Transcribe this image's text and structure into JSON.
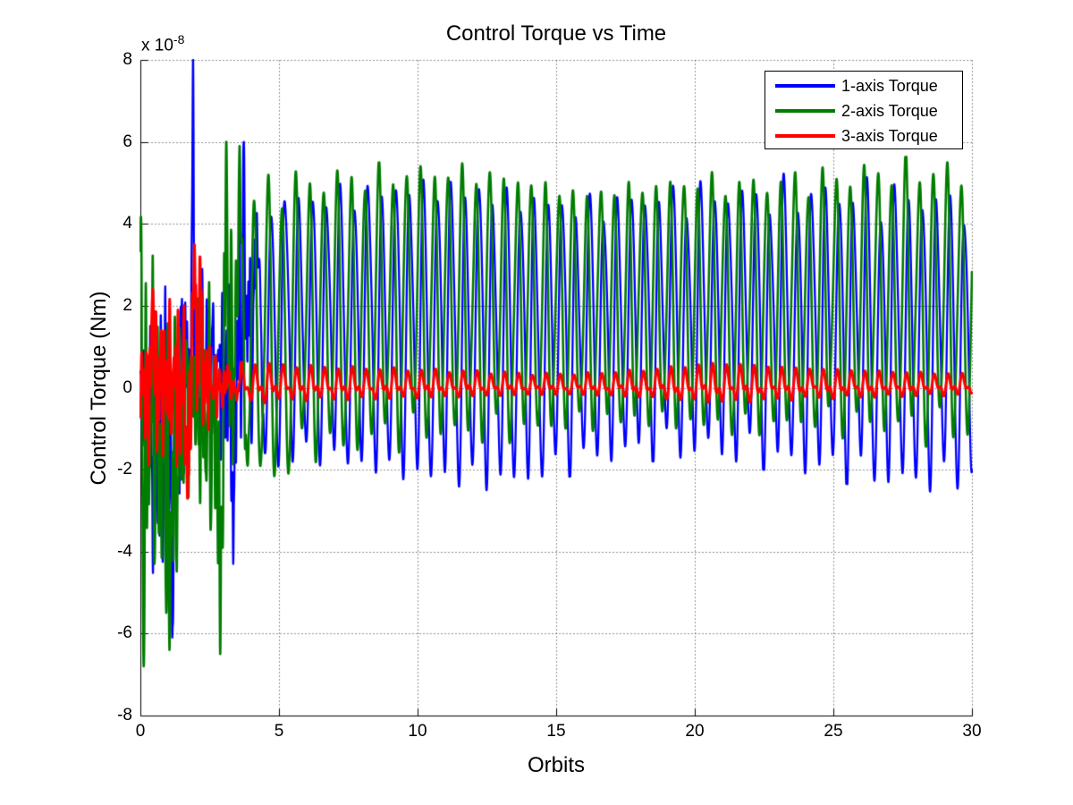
{
  "figure": {
    "title": "Control Torque vs Time",
    "xlabel": "Orbits",
    "ylabel": "Control Torque (Nm)",
    "y_exponent_label": "x 10",
    "y_exponent_power": "-8",
    "background_color": "#FFFFFF",
    "axis_color": "#000000",
    "grid_dot_color": "#262626"
  },
  "legend": {
    "position": "upper-right",
    "items": [
      {
        "label": "1-axis Torque",
        "color": "#0000FF"
      },
      {
        "label": "2-axis Torque",
        "color": "#007D00"
      },
      {
        "label": "3-axis Torque",
        "color": "#FF0000"
      }
    ]
  },
  "seed": 20140613,
  "chart_data": {
    "type": "line",
    "title": "Control Torque vs Time",
    "xlabel": "Orbits",
    "ylabel": "Control Torque (Nm)",
    "xlim": [
      0,
      30
    ],
    "ylim": [
      -8e-08,
      8e-08
    ],
    "y_scale_factor": 1e-08,
    "x_ticks": [
      0,
      5,
      10,
      15,
      20,
      25,
      30
    ],
    "y_ticks_1e8": [
      8,
      6,
      4,
      2,
      0,
      -2,
      -4,
      -6,
      -8
    ],
    "grid": true,
    "legend_position": "upper right",
    "oscillation_cycles_per_orbit": 2,
    "transient_end_orbits": 4.5,
    "series": [
      {
        "name": "1-axis Torque",
        "color": "#0000FF",
        "linewidth": 2.3,
        "peak_time_offset": 0.225,
        "steady_onset": [
          3.6,
          4.7
        ],
        "chaos_freqs": [
          5.3,
          8.1,
          12.7
        ],
        "waveform_harmonics": [
          [
            1,
            0.92,
            0.0
          ],
          [
            2,
            0.1,
            2.1
          ],
          [
            0.5,
            0.06,
            0.7
          ]
        ],
        "envelope_top_1e8": [
          [
            0,
            0.8
          ],
          [
            0.4,
            3.0
          ],
          [
            0.9,
            3.3
          ],
          [
            1.4,
            3.4
          ],
          [
            1.8,
            3.5
          ],
          [
            2.1,
            3.6
          ],
          [
            2.4,
            3.3
          ],
          [
            2.7,
            2.3
          ],
          [
            3.0,
            3.4
          ],
          [
            3.3,
            4.6
          ],
          [
            3.8,
            5.8
          ],
          [
            4.1,
            5.2
          ],
          [
            4.6,
            4.85
          ],
          [
            6,
            4.9
          ],
          [
            8,
            5.05
          ],
          [
            10,
            5.25
          ],
          [
            12,
            5.15
          ],
          [
            14,
            4.9
          ],
          [
            16,
            4.7
          ],
          [
            18,
            4.9
          ],
          [
            20,
            5.0
          ],
          [
            22,
            5.0
          ],
          [
            24,
            5.05
          ],
          [
            26,
            5.05
          ],
          [
            28,
            4.95
          ],
          [
            30,
            4.8
          ]
        ],
        "envelope_bottom_1e8": [
          [
            0,
            -0.8
          ],
          [
            0.3,
            -4.3
          ],
          [
            0.6,
            -5.6
          ],
          [
            0.9,
            -6.0
          ],
          [
            1.2,
            -5.9
          ],
          [
            1.5,
            -3.0
          ],
          [
            1.9,
            -2.0
          ],
          [
            2.2,
            -2.7
          ],
          [
            2.6,
            -1.6
          ],
          [
            3.0,
            -2.2
          ],
          [
            3.3,
            -4.2
          ],
          [
            3.6,
            -2.6
          ],
          [
            4.0,
            -2.1
          ],
          [
            4.3,
            -2.2
          ],
          [
            5,
            -1.9
          ],
          [
            6,
            -1.6
          ],
          [
            7,
            -1.75
          ],
          [
            8,
            -1.9
          ],
          [
            10,
            -2.15
          ],
          [
            12,
            -2.25
          ],
          [
            13.5,
            -2.3
          ],
          [
            15,
            -2.0
          ],
          [
            16.5,
            -1.7
          ],
          [
            18,
            -1.55
          ],
          [
            20,
            -1.5
          ],
          [
            21.5,
            -1.6
          ],
          [
            23,
            -1.8
          ],
          [
            25,
            -2.0
          ],
          [
            26.5,
            -2.2
          ],
          [
            28,
            -2.3
          ],
          [
            30,
            -2.2
          ]
        ],
        "notable_extrema_1e8": [
          {
            "t": 1.9,
            "v": 8.0,
            "w": 0.035
          },
          {
            "t": 1.15,
            "v": -6.1,
            "w": 0.04
          },
          {
            "t": 3.35,
            "v": -4.3,
            "w": 0.04
          },
          {
            "t": 3.73,
            "v": 6.0,
            "w": 0.04
          }
        ]
      },
      {
        "name": "2-axis Torque",
        "color": "#007D00",
        "linewidth": 2.6,
        "peak_time_offset": 0.1,
        "steady_onset": [
          3.0,
          4.2
        ],
        "chaos_freqs": [
          4.9,
          7.4,
          11.3
        ],
        "waveform_harmonics": [
          [
            1,
            0.93,
            0.0
          ],
          [
            2,
            0.09,
            -1.2
          ],
          [
            0.5,
            0.05,
            2.0
          ]
        ],
        "envelope_top_1e8": [
          [
            0,
            4.2
          ],
          [
            0.3,
            3.6
          ],
          [
            0.7,
            3.4
          ],
          [
            1.1,
            3.3
          ],
          [
            1.4,
            2.5
          ],
          [
            1.7,
            2.1
          ],
          [
            2.0,
            2.7
          ],
          [
            2.3,
            3.7
          ],
          [
            2.6,
            2.7
          ],
          [
            2.9,
            3.9
          ],
          [
            3.2,
            5.7
          ],
          [
            3.5,
            5.8
          ],
          [
            3.8,
            5.1
          ],
          [
            4.1,
            4.6
          ],
          [
            4.6,
            4.95
          ],
          [
            6,
            5.05
          ],
          [
            8,
            5.2
          ],
          [
            10,
            5.3
          ],
          [
            12,
            5.3
          ],
          [
            14,
            5.05
          ],
          [
            16,
            4.75
          ],
          [
            18,
            4.95
          ],
          [
            20,
            5.05
          ],
          [
            22,
            5.0
          ],
          [
            24,
            5.1
          ],
          [
            26,
            5.25
          ],
          [
            28,
            5.4
          ],
          [
            30,
            5.2
          ]
        ],
        "envelope_bottom_1e8": [
          [
            0,
            -3.0
          ],
          [
            0.15,
            -6.8
          ],
          [
            0.45,
            -5.6
          ],
          [
            0.75,
            -6.2
          ],
          [
            1.05,
            -6.4
          ],
          [
            1.3,
            -6.2
          ],
          [
            1.6,
            -3.2
          ],
          [
            1.9,
            -2.2
          ],
          [
            2.2,
            -4.0
          ],
          [
            2.5,
            -4.5
          ],
          [
            2.85,
            -6.4
          ],
          [
            3.1,
            -4.2
          ],
          [
            3.4,
            -2.4
          ],
          [
            3.7,
            -2.7
          ],
          [
            4.0,
            -3.3
          ],
          [
            4.3,
            -2.5
          ],
          [
            4.6,
            -2.1
          ],
          [
            5.0,
            -2.5
          ],
          [
            5.6,
            -1.9
          ],
          [
            6.5,
            -1.5
          ],
          [
            7.3,
            -1.8
          ],
          [
            8,
            -1.5
          ],
          [
            10,
            -1.3
          ],
          [
            12,
            -1.35
          ],
          [
            14,
            -1.25
          ],
          [
            16,
            -1.05
          ],
          [
            18,
            -1.0
          ],
          [
            20,
            -1.1
          ],
          [
            22,
            -1.2
          ],
          [
            24,
            -1.05
          ],
          [
            26,
            -1.1
          ],
          [
            28,
            -1.2
          ],
          [
            30,
            -1.3
          ]
        ],
        "notable_extrema_1e8": [
          {
            "t": 0.02,
            "v": 4.2,
            "w": 0.03
          },
          {
            "t": 0.12,
            "v": -6.8,
            "w": 0.04
          },
          {
            "t": 1.05,
            "v": -6.4,
            "w": 0.04
          },
          {
            "t": 2.88,
            "v": -6.5,
            "w": 0.04
          },
          {
            "t": 3.1,
            "v": 6.0,
            "w": 0.04
          },
          {
            "t": 3.58,
            "v": 5.9,
            "w": 0.04
          }
        ]
      },
      {
        "name": "3-axis Torque",
        "color": "#FF0000",
        "linewidth": 3.0,
        "peak_time_offset": 0.17,
        "steady_onset": [
          2.6,
          4.0
        ],
        "chaos_freqs": [
          6.1,
          9.7,
          13.9
        ],
        "waveform_harmonics": [
          [
            1,
            0.62,
            0.0
          ],
          [
            2,
            0.42,
            0.9
          ]
        ],
        "envelope_top_1e8": [
          [
            0,
            1.2
          ],
          [
            0.3,
            2.2
          ],
          [
            0.6,
            2.4
          ],
          [
            1.0,
            2.1
          ],
          [
            1.4,
            2.6
          ],
          [
            1.9,
            3.4
          ],
          [
            2.2,
            2.4
          ],
          [
            2.5,
            1.2
          ],
          [
            2.9,
            0.85
          ],
          [
            3.3,
            0.7
          ],
          [
            3.8,
            0.62
          ],
          [
            4.6,
            0.58
          ],
          [
            6,
            0.52
          ],
          [
            8,
            0.48
          ],
          [
            10,
            0.44
          ],
          [
            12,
            0.4
          ],
          [
            14,
            0.34
          ],
          [
            16,
            0.34
          ],
          [
            18,
            0.42
          ],
          [
            20,
            0.55
          ],
          [
            21,
            0.6
          ],
          [
            22,
            0.55
          ],
          [
            24,
            0.47
          ],
          [
            26,
            0.42
          ],
          [
            28,
            0.37
          ],
          [
            30,
            0.33
          ]
        ],
        "envelope_bottom_1e8": [
          [
            0,
            -1.2
          ],
          [
            0.3,
            -2.0
          ],
          [
            0.6,
            -2.3
          ],
          [
            1.0,
            -2.0
          ],
          [
            1.4,
            -2.4
          ],
          [
            1.9,
            -2.7
          ],
          [
            2.2,
            -2.0
          ],
          [
            2.5,
            -1.1
          ],
          [
            2.9,
            -0.7
          ],
          [
            3.3,
            -0.55
          ],
          [
            3.8,
            -0.48
          ],
          [
            4.6,
            -0.42
          ],
          [
            6,
            -0.38
          ],
          [
            8,
            -0.36
          ],
          [
            10,
            -0.32
          ],
          [
            12,
            -0.28
          ],
          [
            14,
            -0.23
          ],
          [
            16,
            -0.23
          ],
          [
            18,
            -0.3
          ],
          [
            20,
            -0.42
          ],
          [
            21,
            -0.46
          ],
          [
            22,
            -0.42
          ],
          [
            24,
            -0.34
          ],
          [
            26,
            -0.3
          ],
          [
            28,
            -0.26
          ],
          [
            30,
            -0.22
          ]
        ],
        "notable_extrema_1e8": [
          {
            "t": 0.45,
            "v": 2.4,
            "w": 0.05
          },
          {
            "t": 1.7,
            "v": -2.7,
            "w": 0.05
          },
          {
            "t": 1.95,
            "v": 3.5,
            "w": 0.045
          },
          {
            "t": 2.15,
            "v": 3.2,
            "w": 0.04
          }
        ]
      }
    ]
  }
}
